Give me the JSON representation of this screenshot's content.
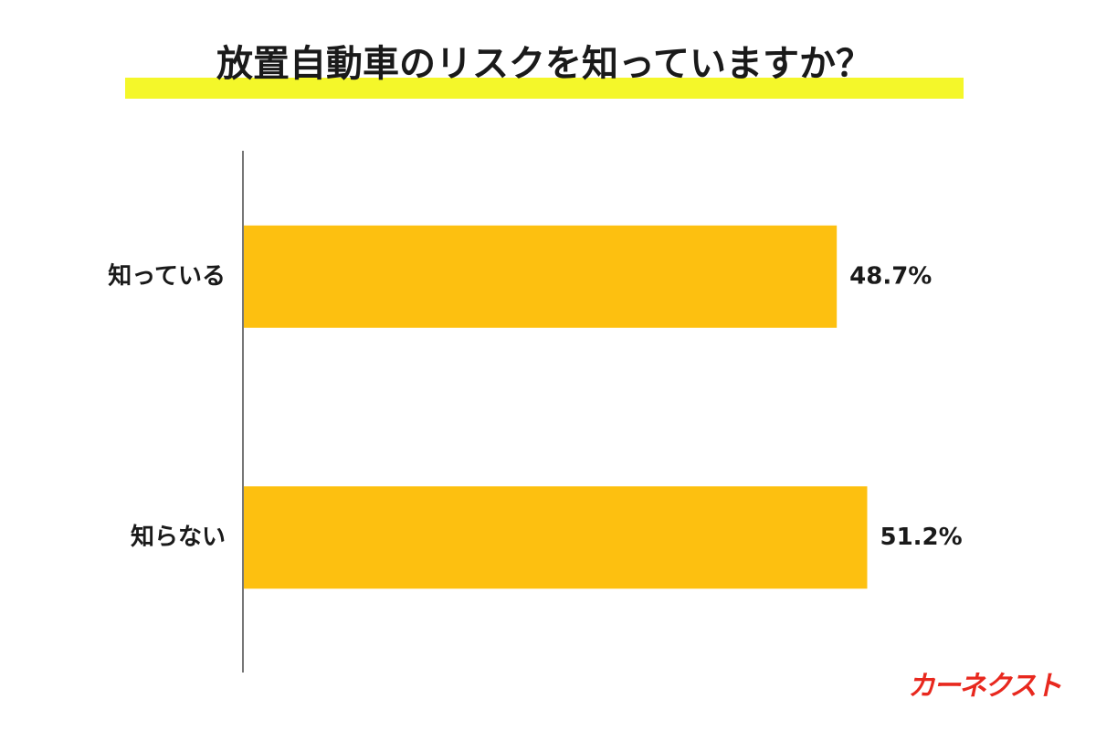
{
  "chart_data": {
    "type": "bar",
    "orientation": "horizontal",
    "title": "放置自動車のリスクを知っていますか？",
    "categories": [
      "知っている",
      "知らない"
    ],
    "values": [
      48.7,
      51.2
    ],
    "value_labels": [
      "48.7%",
      "51.2%"
    ],
    "color": "#fdc010",
    "logo": "カーネクスト"
  }
}
